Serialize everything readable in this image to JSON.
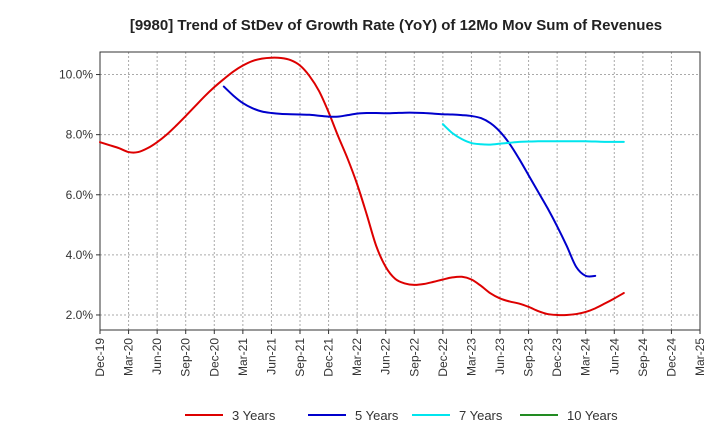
{
  "chart_data": {
    "type": "line",
    "title": "[9980]  Trend of StDev of Growth Rate (YoY) of 12Mo Mov Sum of Revenues",
    "xlabel": "",
    "ylabel": "",
    "ylim": [
      1.5,
      10.75
    ],
    "grid": true,
    "legend_position": "bottom",
    "y_ticks": [
      2.0,
      4.0,
      6.0,
      8.0,
      10.0
    ],
    "y_tick_labels": [
      "2.0%",
      "4.0%",
      "6.0%",
      "8.0%",
      "10.0%"
    ],
    "x_tick_labels": [
      "Dec-19",
      "Mar-20",
      "Jun-20",
      "Sep-20",
      "Dec-20",
      "Mar-21",
      "Jun-21",
      "Sep-21",
      "Dec-21",
      "Mar-22",
      "Jun-22",
      "Sep-22",
      "Dec-22",
      "Mar-23",
      "Jun-23",
      "Sep-23",
      "Dec-23",
      "Mar-24",
      "Jun-24",
      "Sep-24",
      "Dec-24",
      "Mar-25"
    ],
    "series": [
      {
        "name": "3 Years",
        "color": "#dd0000",
        "start_index": 0,
        "values": [
          7.75,
          7.65,
          7.55,
          7.42,
          7.42,
          7.55,
          7.75,
          8.0,
          8.3,
          8.62,
          8.95,
          9.28,
          9.58,
          9.85,
          10.1,
          10.3,
          10.45,
          10.53,
          10.56,
          10.55,
          10.48,
          10.3,
          9.95,
          9.45,
          8.75,
          7.95,
          7.2,
          6.35,
          5.35,
          4.3,
          3.6,
          3.2,
          3.05,
          3.0,
          3.03,
          3.1,
          3.18,
          3.25,
          3.27,
          3.18,
          2.97,
          2.72,
          2.55,
          2.45,
          2.38,
          2.27,
          2.13,
          2.03,
          2.0,
          2.0,
          2.03,
          2.1,
          2.22,
          2.38,
          2.55,
          2.73
        ]
      },
      {
        "name": "5 Years",
        "color": "#0000cc",
        "start_index": 13,
        "values": [
          9.6,
          9.3,
          9.05,
          8.88,
          8.77,
          8.72,
          8.69,
          8.68,
          8.67,
          8.66,
          8.63,
          8.6,
          8.6,
          8.65,
          8.7,
          8.72,
          8.72,
          8.71,
          8.72,
          8.73,
          8.73,
          8.72,
          8.7,
          8.68,
          8.67,
          8.65,
          8.62,
          8.55,
          8.38,
          8.1,
          7.7,
          7.2,
          6.65,
          6.1,
          5.55,
          4.95,
          4.3,
          3.6,
          3.3,
          3.3
        ]
      },
      {
        "name": "7 Years",
        "color": "#00e5ee",
        "start_index": 36,
        "values": [
          8.35,
          8.05,
          7.85,
          7.72,
          7.68,
          7.67,
          7.7,
          7.73,
          7.76,
          7.77,
          7.78,
          7.78,
          7.78,
          7.78,
          7.78,
          7.78,
          7.77,
          7.76,
          7.76,
          7.76
        ]
      },
      {
        "name": "10 Years",
        "color": "#228b22",
        "start_index": 0,
        "values": []
      }
    ]
  }
}
